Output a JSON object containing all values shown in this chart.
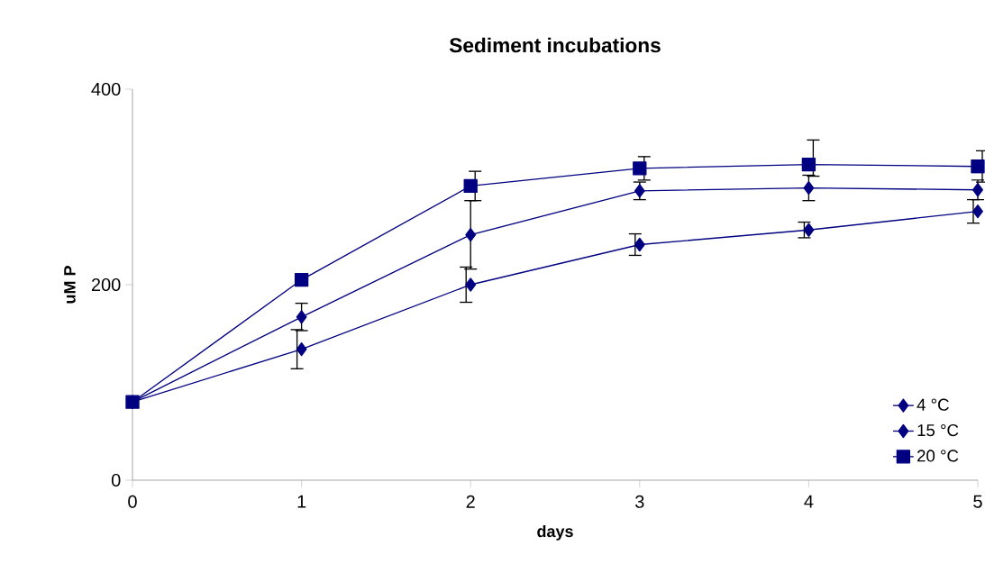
{
  "chart_data": {
    "type": "line",
    "title": "Sediment incubations",
    "xlabel": "days",
    "ylabel": "uM P",
    "x": [
      0,
      1,
      2,
      3,
      4,
      5
    ],
    "xlim": [
      0,
      5
    ],
    "xticks": [
      0,
      1,
      2,
      3,
      4,
      5
    ],
    "ylim": [
      0,
      400
    ],
    "yticks": [
      0,
      200,
      400
    ],
    "legend": "bottom right",
    "line_style": "solid",
    "series": [
      {
        "name": "4 °C",
        "color": "#000080",
        "marker": "diamond",
        "values": [
          80,
          134,
          200,
          241,
          256,
          275
        ],
        "errors": [
          null,
          20,
          18,
          11,
          8,
          12
        ]
      },
      {
        "name": "15 °C",
        "color": "#000080",
        "marker": "diamond",
        "values": [
          80,
          167,
          251,
          296,
          299,
          297
        ],
        "errors": [
          null,
          14,
          35,
          9,
          13,
          10
        ]
      },
      {
        "name": "20 °C",
        "color": "#000080",
        "marker": "square",
        "values": [
          80,
          205,
          301,
          319,
          323,
          321
        ],
        "errors": [
          null,
          null,
          15,
          12,
          [
            311,
            348
          ],
          16
        ]
      }
    ]
  }
}
